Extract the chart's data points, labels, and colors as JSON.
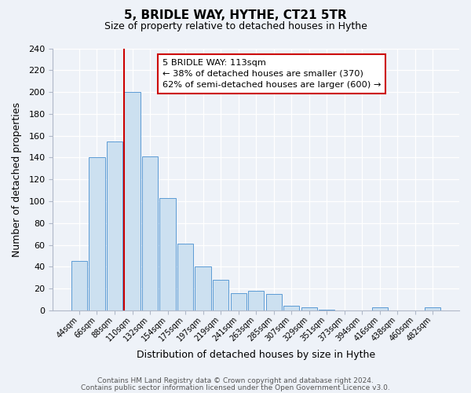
{
  "title": "5, BRIDLE WAY, HYTHE, CT21 5TR",
  "subtitle": "Size of property relative to detached houses in Hythe",
  "xlabel": "Distribution of detached houses by size in Hythe",
  "ylabel": "Number of detached properties",
  "bar_labels": [
    "44sqm",
    "66sqm",
    "88sqm",
    "110sqm",
    "132sqm",
    "154sqm",
    "175sqm",
    "197sqm",
    "219sqm",
    "241sqm",
    "263sqm",
    "285sqm",
    "307sqm",
    "329sqm",
    "351sqm",
    "373sqm",
    "394sqm",
    "416sqm",
    "438sqm",
    "460sqm",
    "482sqm"
  ],
  "bar_values": [
    45,
    140,
    155,
    200,
    141,
    103,
    61,
    40,
    28,
    16,
    18,
    15,
    4,
    3,
    1,
    0,
    0,
    3,
    0,
    0,
    3
  ],
  "bar_color": "#cce0f0",
  "bar_edge_color": "#5b9bd5",
  "vline_color": "#cc0000",
  "annotation_title": "5 BRIDLE WAY: 113sqm",
  "annotation_line1": "← 38% of detached houses are smaller (370)",
  "annotation_line2": "62% of semi-detached houses are larger (600) →",
  "annotation_box_color": "#ffffff",
  "annotation_box_edge": "#cc0000",
  "ylim": [
    0,
    240
  ],
  "yticks": [
    0,
    20,
    40,
    60,
    80,
    100,
    120,
    140,
    160,
    180,
    200,
    220,
    240
  ],
  "footer1": "Contains HM Land Registry data © Crown copyright and database right 2024.",
  "footer2": "Contains public sector information licensed under the Open Government Licence v3.0.",
  "bg_color": "#eef2f8",
  "plot_bg_color": "#eef2f8"
}
